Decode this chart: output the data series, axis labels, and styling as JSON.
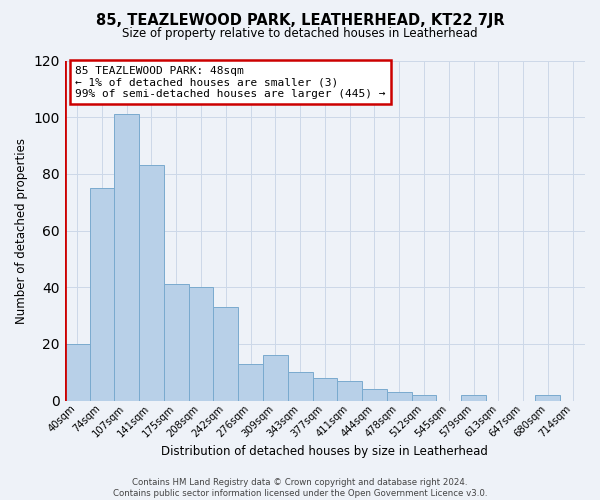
{
  "title": "85, TEAZLEWOOD PARK, LEATHERHEAD, KT22 7JR",
  "subtitle": "Size of property relative to detached houses in Leatherhead",
  "xlabel": "Distribution of detached houses by size in Leatherhead",
  "ylabel": "Number of detached properties",
  "footer_line1": "Contains HM Land Registry data © Crown copyright and database right 2024.",
  "footer_line2": "Contains public sector information licensed under the Open Government Licence v3.0.",
  "annotation_title": "85 TEAZLEWOOD PARK: 48sqm",
  "annotation_line2": "← 1% of detached houses are smaller (3)",
  "annotation_line3": "99% of semi-detached houses are larger (445) →",
  "bar_labels": [
    "40sqm",
    "74sqm",
    "107sqm",
    "141sqm",
    "175sqm",
    "208sqm",
    "242sqm",
    "276sqm",
    "309sqm",
    "343sqm",
    "377sqm",
    "411sqm",
    "444sqm",
    "478sqm",
    "512sqm",
    "545sqm",
    "579sqm",
    "613sqm",
    "647sqm",
    "680sqm",
    "714sqm"
  ],
  "bar_values": [
    20,
    75,
    101,
    83,
    41,
    40,
    33,
    13,
    16,
    10,
    8,
    7,
    4,
    3,
    2,
    0,
    2,
    0,
    0,
    2,
    0
  ],
  "bar_color": "#b8d0e8",
  "bar_edge_color": "#7aaace",
  "red_line_x": 0,
  "red_line_color": "#cc0000",
  "annotation_box_color": "#ffffff",
  "annotation_box_edge_color": "#cc0000",
  "grid_color": "#ccd8e8",
  "background_color": "#eef2f8",
  "ylim": [
    0,
    120
  ],
  "yticks": [
    0,
    20,
    40,
    60,
    80,
    100,
    120
  ]
}
